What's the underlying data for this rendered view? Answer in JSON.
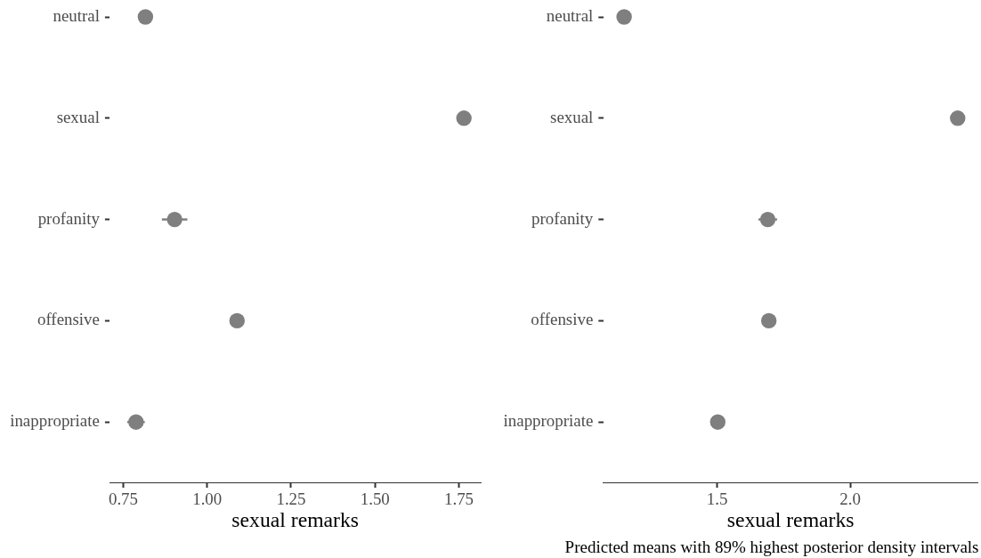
{
  "chart_data": [
    {
      "type": "scatter",
      "orientation": "horizontal",
      "categories": [
        "neutral",
        "sexual",
        "profanity",
        "offensive",
        "inappropriate"
      ],
      "values": [
        0.816,
        1.765,
        0.903,
        1.089,
        0.788
      ],
      "errors": [
        null,
        null,
        0.038,
        null,
        0.026
      ],
      "color": "#7f7f7f",
      "marker": "circle",
      "xlabel": "sexual remarks",
      "xlim": [
        0.71,
        1.815
      ],
      "xticks": [
        0.75,
        {
          "value": 1,
          "label": "1.00"
        },
        1.25,
        {
          "value": 1.5,
          "label": "1.50"
        },
        1.75
      ]
    },
    {
      "type": "scatter",
      "orientation": "horizontal",
      "categories": [
        "neutral",
        "sexual",
        "profanity",
        "offensive",
        "inappropriate"
      ],
      "values": [
        1.15,
        2.404,
        1.69,
        1.694,
        1.502
      ],
      "errors": [
        null,
        null,
        0.035,
        null,
        null
      ],
      "color": "#7f7f7f",
      "marker": "circle",
      "xlabel": "sexual remarks",
      "xlim": [
        1.072,
        2.48
      ],
      "xticks": [
        1.5,
        {
          "value": 2,
          "label": "2.0"
        }
      ],
      "annotations": [
        "Predicted means with 89% highest posterior density intervals"
      ]
    }
  ]
}
